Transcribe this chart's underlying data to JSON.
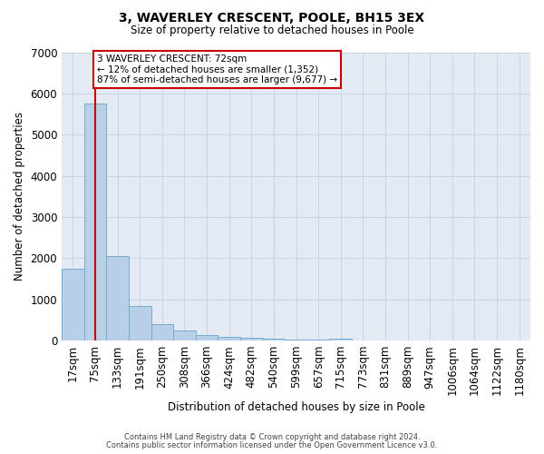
{
  "title_line1": "3, WAVERLEY CRESCENT, POOLE, BH15 3EX",
  "title_line2": "Size of property relative to detached houses in Poole",
  "xlabel": "Distribution of detached houses by size in Poole",
  "ylabel": "Number of detached properties",
  "categories": [
    "17sqm",
    "75sqm",
    "133sqm",
    "191sqm",
    "250sqm",
    "308sqm",
    "366sqm",
    "424sqm",
    "482sqm",
    "540sqm",
    "599sqm",
    "657sqm",
    "715sqm",
    "773sqm",
    "831sqm",
    "889sqm",
    "947sqm",
    "1006sqm",
    "1064sqm",
    "1122sqm",
    "1180sqm"
  ],
  "values": [
    1750,
    5750,
    2050,
    830,
    390,
    250,
    130,
    100,
    60,
    40,
    30,
    20,
    40,
    0,
    0,
    0,
    0,
    0,
    0,
    0,
    0
  ],
  "bar_color": "#b8cfe8",
  "bar_edge_color": "#7aaad0",
  "annotation_text": "3 WAVERLEY CRESCENT: 72sqm\n← 12% of detached houses are smaller (1,352)\n87% of semi-detached houses are larger (9,677) →",
  "annotation_box_facecolor": "#ffffff",
  "annotation_box_edgecolor": "#cc0000",
  "vline_color": "#cc0000",
  "vline_x": 1,
  "ylim": [
    0,
    7000
  ],
  "yticks": [
    0,
    1000,
    2000,
    3000,
    4000,
    5000,
    6000,
    7000
  ],
  "grid_color": "#c8d4e4",
  "plot_bg_color": "#e4eaf4",
  "footer_line1": "Contains HM Land Registry data © Crown copyright and database right 2024.",
  "footer_line2": "Contains public sector information licensed under the Open Government Licence v3.0."
}
